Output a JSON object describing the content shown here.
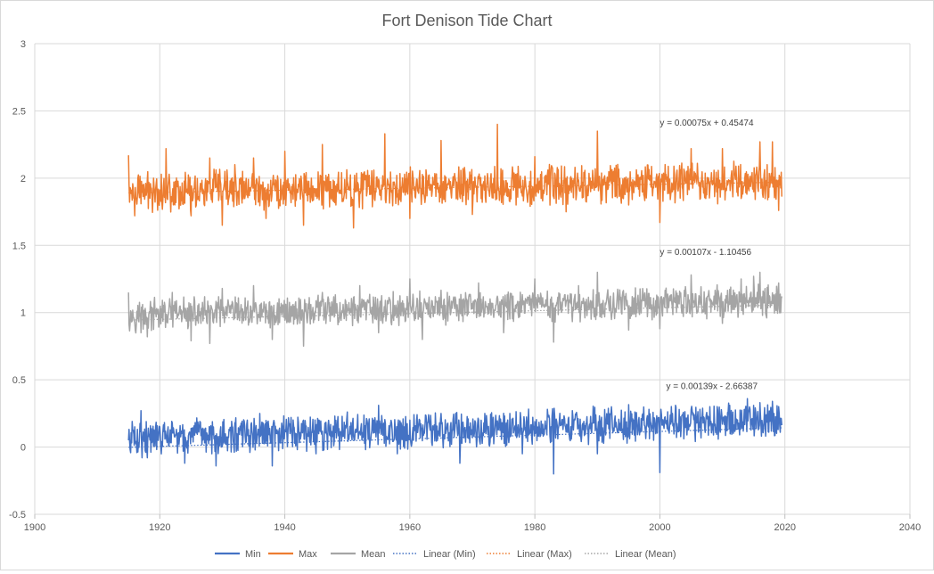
{
  "chart_data": {
    "type": "line",
    "title": "Fort Denison Tide Chart",
    "xlabel": "",
    "ylabel": "",
    "xlim": [
      1900,
      2040
    ],
    "ylim": [
      -0.5,
      3
    ],
    "x_ticks": [
      "1900",
      "1920",
      "1940",
      "1960",
      "1980",
      "2000",
      "2020",
      "2040"
    ],
    "y_ticks": [
      "-0.5",
      "0",
      "0.5",
      "1",
      "1.5",
      "2",
      "2.5",
      "3"
    ],
    "grid": true,
    "legend_position": "bottom",
    "x_range": [
      1915,
      2019.5
    ],
    "series": [
      {
        "name": "Min",
        "color": "#4472C4",
        "style": "solid",
        "base": 0.06,
        "trend_per_year": 0.00139,
        "amplitude": 0.1,
        "samples": [
          [
            1915,
            0.05
          ],
          [
            1916,
            0.15
          ],
          [
            1917,
            0.27
          ],
          [
            1918,
            -0.08
          ],
          [
            1920,
            0.15
          ],
          [
            1922,
            0.18
          ],
          [
            1924,
            -0.12
          ],
          [
            1927,
            0.08
          ],
          [
            1929,
            -0.14
          ],
          [
            1932,
            0.18
          ],
          [
            1934,
            0.2
          ],
          [
            1936,
            0.25
          ],
          [
            1938,
            -0.14
          ],
          [
            1941,
            0.22
          ],
          [
            1945,
            -0.05
          ],
          [
            1950,
            0.26
          ],
          [
            1955,
            0.31
          ],
          [
            1958,
            -0.05
          ],
          [
            1960,
            0.2
          ],
          [
            1965,
            0.25
          ],
          [
            1968,
            -0.12
          ],
          [
            1972,
            0.25
          ],
          [
            1976,
            0.25
          ],
          [
            1978,
            -0.05
          ],
          [
            1982,
            0.28
          ],
          [
            1983,
            -0.2
          ],
          [
            1986,
            0.27
          ],
          [
            1990,
            -0.05
          ],
          [
            1996,
            0.26
          ],
          [
            1999,
            0.05
          ],
          [
            2000,
            0.53
          ],
          [
            2000,
            -0.19
          ],
          [
            2002,
            0.25
          ],
          [
            2005,
            0.28
          ],
          [
            2008,
            0.3
          ],
          [
            2013,
            0.18
          ],
          [
            2014,
            0.36
          ],
          [
            2016,
            0.33
          ],
          [
            2018,
            0.34
          ],
          [
            2019,
            0.3
          ]
        ]
      },
      {
        "name": "Max",
        "color": "#ED7D31",
        "style": "solid",
        "base": 1.9,
        "trend_per_year": 0.00075,
        "amplitude": 0.11,
        "samples": [
          [
            1915,
            2.07
          ],
          [
            1915,
            2.17
          ],
          [
            1916,
            1.72
          ],
          [
            1919,
            2.0
          ],
          [
            1921,
            2.22
          ],
          [
            1925,
            1.72
          ],
          [
            1928,
            2.15
          ],
          [
            1930,
            1.65
          ],
          [
            1932,
            2.1
          ],
          [
            1935,
            2.15
          ],
          [
            1937,
            1.7
          ],
          [
            1940,
            2.2
          ],
          [
            1943,
            1.65
          ],
          [
            1946,
            2.25
          ],
          [
            1951,
            1.63
          ],
          [
            1956,
            2.33
          ],
          [
            1960,
            1.7
          ],
          [
            1965,
            2.28
          ],
          [
            1970,
            1.73
          ],
          [
            1974,
            2.4
          ],
          [
            1977,
            1.8
          ],
          [
            1980,
            2.16
          ],
          [
            1985,
            1.75
          ],
          [
            1990,
            2.35
          ],
          [
            1995,
            1.8
          ],
          [
            2000,
            2.25
          ],
          [
            2000,
            1.67
          ],
          [
            2005,
            2.22
          ],
          [
            2010,
            2.22
          ],
          [
            2016,
            2.27
          ],
          [
            2018,
            2.27
          ],
          [
            2019,
            1.76
          ]
        ]
      },
      {
        "name": "Mean",
        "color": "#A5A5A5",
        "style": "solid",
        "base": 0.98,
        "trend_per_year": 0.00107,
        "amplitude": 0.09,
        "samples": [
          [
            1915,
            1.12
          ],
          [
            1915,
            1.15
          ],
          [
            1917,
            0.85
          ],
          [
            1918,
            0.82
          ],
          [
            1922,
            1.15
          ],
          [
            1925,
            0.79
          ],
          [
            1928,
            0.77
          ],
          [
            1930,
            1.18
          ],
          [
            1935,
            1.2
          ],
          [
            1938,
            0.8
          ],
          [
            1943,
            0.75
          ],
          [
            1946,
            1.15
          ],
          [
            1952,
            1.2
          ],
          [
            1955,
            0.85
          ],
          [
            1960,
            1.25
          ],
          [
            1962,
            0.8
          ],
          [
            1966,
            1.15
          ],
          [
            1971,
            1.22
          ],
          [
            1975,
            0.85
          ],
          [
            1980,
            1.25
          ],
          [
            1983,
            0.78
          ],
          [
            1987,
            1.2
          ],
          [
            1990,
            1.3
          ],
          [
            1995,
            0.87
          ],
          [
            2000,
            0.88
          ],
          [
            2005,
            1.28
          ],
          [
            2010,
            0.92
          ],
          [
            2013,
            1.25
          ],
          [
            2015,
            1.27
          ],
          [
            2016,
            1.3
          ],
          [
            2019,
            0.95
          ],
          [
            2019,
            1.22
          ]
        ]
      },
      {
        "name": "Linear (Min)",
        "color": "#4472C4",
        "style": "dotted",
        "slope": 0.00139,
        "intercept": -2.66387
      },
      {
        "name": "Linear (Max)",
        "color": "#ED7D31",
        "style": "dotted",
        "slope": 0.00075,
        "intercept": 0.45474
      },
      {
        "name": "Linear (Mean)",
        "color": "#A5A5A5",
        "style": "dotted",
        "slope": 0.00107,
        "intercept": -1.10456
      }
    ],
    "annotations": [
      {
        "text": "y = 0.00075x + 0.45474",
        "x": 2000,
        "y": 2.39
      },
      {
        "text": "y = 0.00107x - 1.10456",
        "x": 2000,
        "y": 1.43
      },
      {
        "text": "y = 0.00139x - 2.66387",
        "x": 2001,
        "y": 0.43
      }
    ]
  }
}
